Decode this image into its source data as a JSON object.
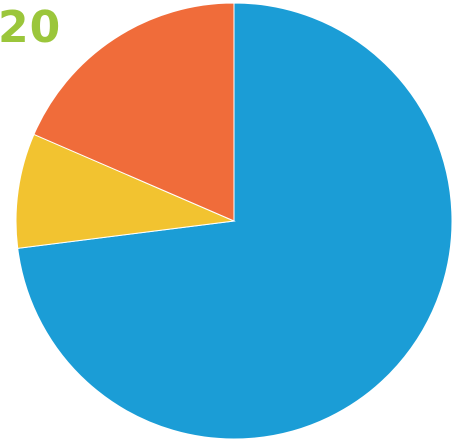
{
  "corner_label": "20",
  "chart_data": {
    "type": "pie",
    "title": "",
    "legend": "none",
    "slices": [
      {
        "value": 73.0,
        "color": "#1b9dd6"
      },
      {
        "value": 8.5,
        "color": "#f2c330"
      },
      {
        "value": 18.5,
        "color": "#f06c3a"
      }
    ]
  }
}
